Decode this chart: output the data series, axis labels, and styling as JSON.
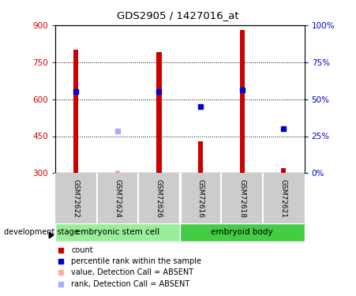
{
  "title": "GDS2905 / 1427016_at",
  "samples": [
    "GSM72622",
    "GSM72624",
    "GSM72626",
    "GSM72616",
    "GSM72618",
    "GSM72621"
  ],
  "bar_values": [
    800,
    310,
    790,
    430,
    880,
    320
  ],
  "bar_colors_present": [
    "#cc0000",
    "#cc0000",
    "#cc0000",
    "#cc0000",
    "#cc0000",
    "#cc0000"
  ],
  "bar_absent": [
    false,
    true,
    false,
    false,
    false,
    false
  ],
  "bar_color_present": "#cc0000",
  "bar_color_absent": "#ffaaaa",
  "rank_values": [
    630,
    null,
    630,
    570,
    638,
    480
  ],
  "rank_absent_values": [
    null,
    470,
    null,
    null,
    null,
    null
  ],
  "rank_color_present": "#0000cc",
  "rank_color_absent": "#aaaaff",
  "ylim_left": [
    300,
    900
  ],
  "ylim_right": [
    0,
    100
  ],
  "yticks_left": [
    300,
    450,
    600,
    750,
    900
  ],
  "yticks_right": [
    0,
    25,
    50,
    75,
    100
  ],
  "ytick_labels_right": [
    "0%",
    "25%",
    "50%",
    "75%",
    "100%"
  ],
  "dotted_lines": [
    450,
    600,
    750
  ],
  "group1_label": "embryonic stem cell",
  "group2_label": "embryoid body",
  "group1_color": "#99ee99",
  "group2_color": "#44cc44",
  "xlabel_color_left": "#cc0000",
  "xlabel_color_right": "#0000cc",
  "bar_width": 0.12,
  "legend_items": [
    {
      "color": "#cc0000",
      "label": "count"
    },
    {
      "color": "#0000cc",
      "label": "percentile rank within the sample"
    },
    {
      "color": "#ffaaaa",
      "label": "value, Detection Call = ABSENT"
    },
    {
      "color": "#aaaaff",
      "label": "rank, Detection Call = ABSENT"
    }
  ]
}
